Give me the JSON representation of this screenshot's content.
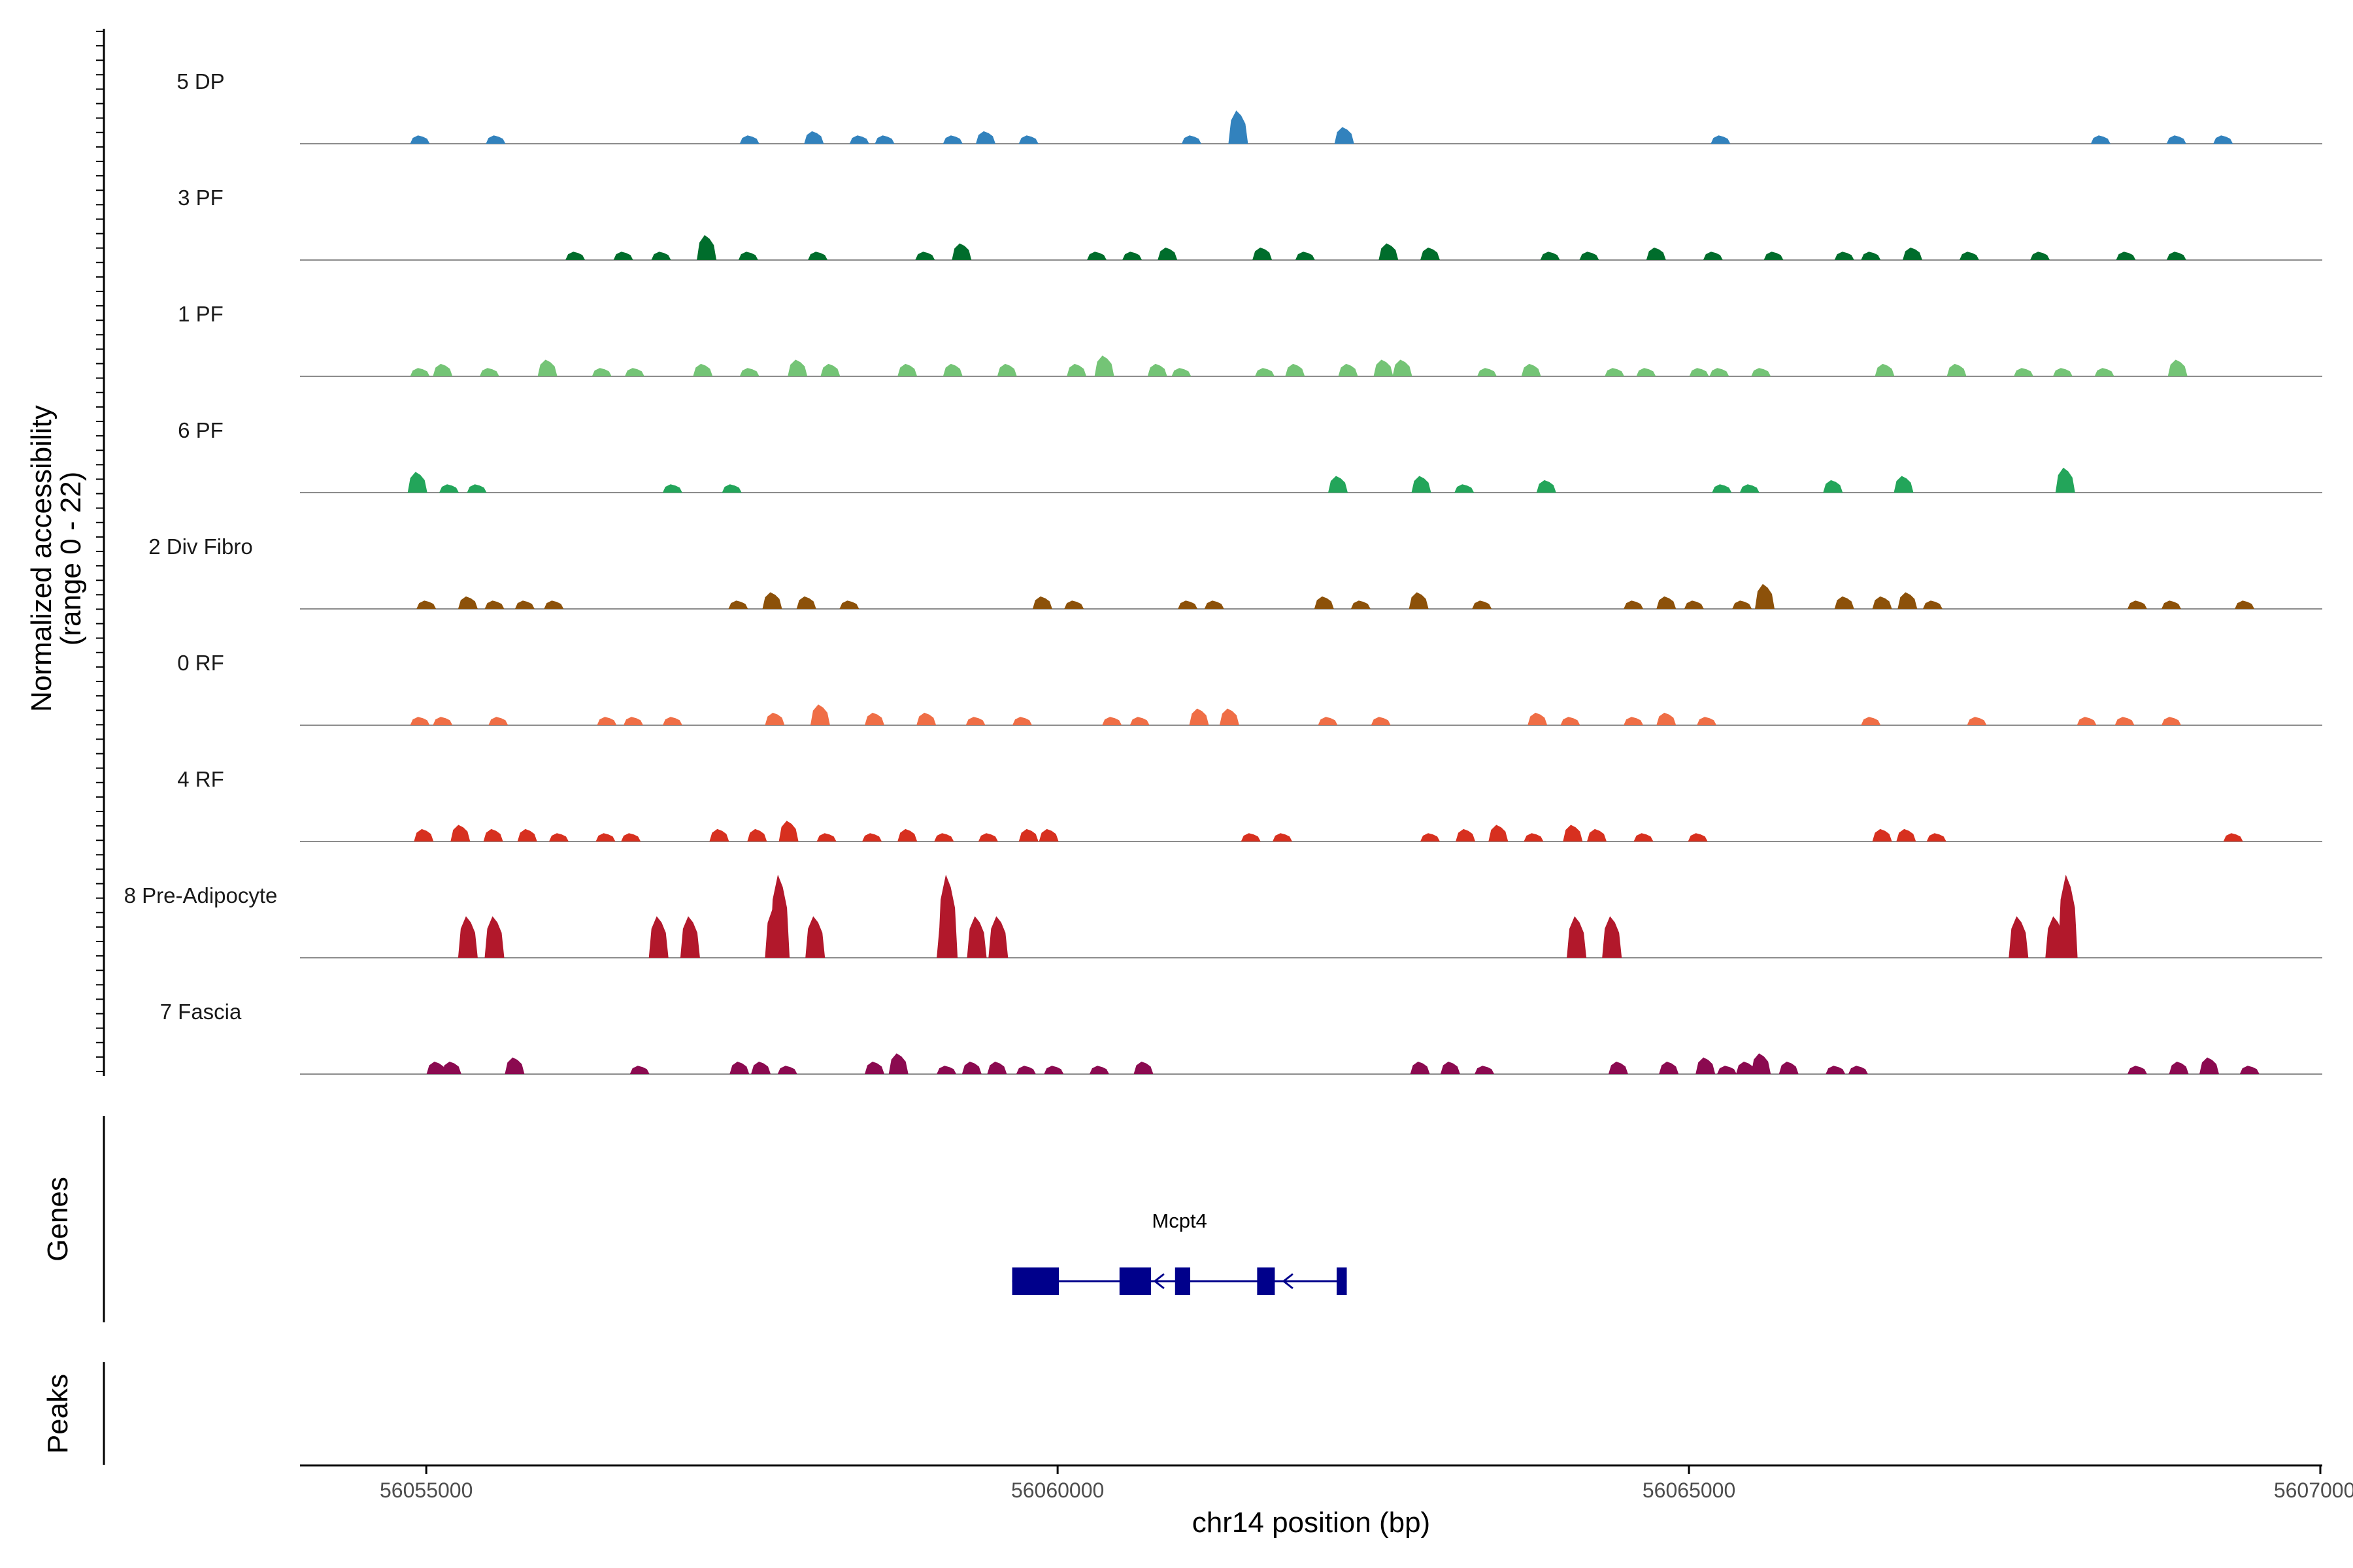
{
  "chart_data": {
    "type": "area",
    "chromosome": "chr14",
    "ylabel_line1": "Normalized accessibility",
    "ylabel_line2": "(range 0 - 22)",
    "ylim": [
      0,
      22
    ],
    "xlabel": "chr14 position (bp)",
    "xlim": [
      56054000,
      56070000
    ],
    "xticks": [
      56055000,
      56060000,
      56065000,
      56070000
    ],
    "xtick_labels": [
      "56055000",
      "56060000",
      "56065000",
      "56070000"
    ],
    "tracks": [
      {
        "name": "5 DP",
        "color": "#3282BD",
        "peaks": [
          [
            56054950,
            2
          ],
          [
            56055550,
            2
          ],
          [
            56057560,
            2
          ],
          [
            56058070,
            3
          ],
          [
            56058430,
            2
          ],
          [
            56058630,
            2
          ],
          [
            56059170,
            2
          ],
          [
            56059430,
            3
          ],
          [
            56059770,
            2
          ],
          [
            56061060,
            2
          ],
          [
            56061430,
            8
          ],
          [
            56062270,
            4
          ],
          [
            56065250,
            2
          ],
          [
            56068260,
            2
          ],
          [
            56068860,
            2
          ],
          [
            56069230,
            2
          ]
        ]
      },
      {
        "name": "3 PF",
        "color": "#006D2C",
        "peaks": [
          [
            56056180,
            2
          ],
          [
            56056560,
            2
          ],
          [
            56056860,
            2
          ],
          [
            56057220,
            6
          ],
          [
            56057550,
            2
          ],
          [
            56058100,
            2
          ],
          [
            56058950,
            2
          ],
          [
            56059240,
            4
          ],
          [
            56060310,
            2
          ],
          [
            56060590,
            2
          ],
          [
            56060870,
            3
          ],
          [
            56061620,
            3
          ],
          [
            56061960,
            2
          ],
          [
            56062620,
            4
          ],
          [
            56062950,
            3
          ],
          [
            56063900,
            2
          ],
          [
            56064210,
            2
          ],
          [
            56064740,
            3
          ],
          [
            56065190,
            2
          ],
          [
            56065670,
            2
          ],
          [
            56066230,
            2
          ],
          [
            56066440,
            2
          ],
          [
            56066770,
            3
          ],
          [
            56067220,
            2
          ],
          [
            56067780,
            2
          ],
          [
            56068460,
            2
          ],
          [
            56068860,
            2
          ]
        ]
      },
      {
        "name": "1 PF",
        "color": "#74C476",
        "peaks": [
          [
            56054950,
            2
          ],
          [
            56055130,
            3
          ],
          [
            56055500,
            2
          ],
          [
            56055960,
            4
          ],
          [
            56056390,
            2
          ],
          [
            56056650,
            2
          ],
          [
            56057190,
            3
          ],
          [
            56057560,
            2
          ],
          [
            56057940,
            4
          ],
          [
            56058200,
            3
          ],
          [
            56058810,
            3
          ],
          [
            56059170,
            3
          ],
          [
            56059600,
            3
          ],
          [
            56060150,
            3
          ],
          [
            56060370,
            5
          ],
          [
            56060790,
            3
          ],
          [
            56060980,
            2
          ],
          [
            56061640,
            2
          ],
          [
            56061880,
            3
          ],
          [
            56062300,
            3
          ],
          [
            56062580,
            4
          ],
          [
            56062730,
            4
          ],
          [
            56063400,
            2
          ],
          [
            56063750,
            3
          ],
          [
            56064410,
            2
          ],
          [
            56064660,
            2
          ],
          [
            56065080,
            2
          ],
          [
            56065240,
            2
          ],
          [
            56065570,
            2
          ],
          [
            56066550,
            3
          ],
          [
            56067120,
            3
          ],
          [
            56067650,
            2
          ],
          [
            56067960,
            2
          ],
          [
            56068290,
            2
          ],
          [
            56068870,
            4
          ]
        ]
      },
      {
        "name": "6 PF",
        "color": "#23A55A",
        "peaks": [
          [
            56054930,
            5
          ],
          [
            56055180,
            2
          ],
          [
            56055400,
            2
          ],
          [
            56056950,
            2
          ],
          [
            56057420,
            2
          ],
          [
            56062220,
            4
          ],
          [
            56062880,
            4
          ],
          [
            56063220,
            2
          ],
          [
            56063870,
            3
          ],
          [
            56065260,
            2
          ],
          [
            56065480,
            2
          ],
          [
            56066140,
            3
          ],
          [
            56066700,
            4
          ],
          [
            56067980,
            6
          ]
        ]
      },
      {
        "name": "2 Div Fibro",
        "color": "#8C510A",
        "peaks": [
          [
            56055000,
            2
          ],
          [
            56055330,
            3
          ],
          [
            56055540,
            2
          ],
          [
            56055780,
            2
          ],
          [
            56056010,
            2
          ],
          [
            56057470,
            2
          ],
          [
            56057740,
            4
          ],
          [
            56058010,
            3
          ],
          [
            56058350,
            2
          ],
          [
            56059880,
            3
          ],
          [
            56060130,
            2
          ],
          [
            56061030,
            2
          ],
          [
            56061240,
            2
          ],
          [
            56062110,
            3
          ],
          [
            56062400,
            2
          ],
          [
            56062860,
            4
          ],
          [
            56063360,
            2
          ],
          [
            56064560,
            2
          ],
          [
            56064820,
            3
          ],
          [
            56065040,
            2
          ],
          [
            56065420,
            2
          ],
          [
            56065600,
            6
          ],
          [
            56066230,
            3
          ],
          [
            56066530,
            3
          ],
          [
            56066730,
            4
          ],
          [
            56066930,
            2
          ],
          [
            56068550,
            2
          ],
          [
            56068820,
            2
          ],
          [
            56069400,
            2
          ]
        ]
      },
      {
        "name": "0 RF",
        "color": "#EF6E46",
        "peaks": [
          [
            56054950,
            2
          ],
          [
            56055130,
            2
          ],
          [
            56055570,
            2
          ],
          [
            56056430,
            2
          ],
          [
            56056640,
            2
          ],
          [
            56056950,
            2
          ],
          [
            56057760,
            3
          ],
          [
            56058120,
            5
          ],
          [
            56058550,
            3
          ],
          [
            56058960,
            3
          ],
          [
            56059350,
            2
          ],
          [
            56059720,
            2
          ],
          [
            56060430,
            2
          ],
          [
            56060650,
            2
          ],
          [
            56061120,
            4
          ],
          [
            56061360,
            4
          ],
          [
            56062140,
            2
          ],
          [
            56062560,
            2
          ],
          [
            56063800,
            3
          ],
          [
            56064060,
            2
          ],
          [
            56064560,
            2
          ],
          [
            56064820,
            3
          ],
          [
            56065140,
            2
          ],
          [
            56066440,
            2
          ],
          [
            56067280,
            2
          ],
          [
            56068150,
            2
          ],
          [
            56068450,
            2
          ],
          [
            56068820,
            2
          ]
        ]
      },
      {
        "name": "4 RF",
        "color": "#D7301F",
        "peaks": [
          [
            56054980,
            3
          ],
          [
            56055270,
            4
          ],
          [
            56055530,
            3
          ],
          [
            56055800,
            3
          ],
          [
            56056050,
            2
          ],
          [
            56056420,
            2
          ],
          [
            56056620,
            2
          ],
          [
            56057320,
            3
          ],
          [
            56057620,
            3
          ],
          [
            56057870,
            5
          ],
          [
            56058170,
            2
          ],
          [
            56058530,
            2
          ],
          [
            56058810,
            3
          ],
          [
            56059100,
            2
          ],
          [
            56059450,
            2
          ],
          [
            56059770,
            3
          ],
          [
            56059930,
            3
          ],
          [
            56061530,
            2
          ],
          [
            56061780,
            2
          ],
          [
            56062950,
            2
          ],
          [
            56063230,
            3
          ],
          [
            56063490,
            4
          ],
          [
            56063770,
            2
          ],
          [
            56064080,
            4
          ],
          [
            56064270,
            3
          ],
          [
            56064640,
            2
          ],
          [
            56065070,
            2
          ],
          [
            56066530,
            3
          ],
          [
            56066720,
            3
          ],
          [
            56066960,
            2
          ],
          [
            56069310,
            2
          ]
        ]
      },
      {
        "name": "8 Pre-Adipocyte",
        "color": "#B2182B",
        "peaks": [
          [
            56055330,
            10
          ],
          [
            56055540,
            10
          ],
          [
            56056840,
            10
          ],
          [
            56057090,
            10
          ],
          [
            56057760,
            12
          ],
          [
            56057800,
            20
          ],
          [
            56058080,
            10
          ],
          [
            56059120,
            10
          ],
          [
            56059130,
            20
          ],
          [
            56059360,
            10
          ],
          [
            56059530,
            10
          ],
          [
            56064110,
            10
          ],
          [
            56064390,
            10
          ],
          [
            56067610,
            10
          ],
          [
            56067900,
            10
          ],
          [
            56068000,
            20
          ]
        ]
      },
      {
        "name": "7 Fascia",
        "color": "#8B0A50",
        "peaks": [
          [
            56055080,
            3
          ],
          [
            56055200,
            3
          ],
          [
            56055700,
            4
          ],
          [
            56056690,
            2
          ],
          [
            56057480,
            3
          ],
          [
            56057650,
            3
          ],
          [
            56057860,
            2
          ],
          [
            56058550,
            3
          ],
          [
            56058740,
            5
          ],
          [
            56059120,
            2
          ],
          [
            56059320,
            3
          ],
          [
            56059520,
            3
          ],
          [
            56059750,
            2
          ],
          [
            56059970,
            2
          ],
          [
            56060330,
            2
          ],
          [
            56060680,
            3
          ],
          [
            56062870,
            3
          ],
          [
            56063110,
            3
          ],
          [
            56063380,
            2
          ],
          [
            56064440,
            3
          ],
          [
            56064840,
            3
          ],
          [
            56065130,
            4
          ],
          [
            56065300,
            2
          ],
          [
            56065450,
            3
          ],
          [
            56065570,
            5
          ],
          [
            56065790,
            3
          ],
          [
            56066160,
            2
          ],
          [
            56066340,
            2
          ],
          [
            56068550,
            2
          ],
          [
            56068880,
            3
          ],
          [
            56069120,
            4
          ],
          [
            56069440,
            2
          ]
        ]
      }
    ],
    "genes_panel": {
      "title": "Genes",
      "gene": {
        "name": "Mcpt4",
        "strand": "-",
        "color": "#00008B",
        "start": 56059640,
        "end": 56062290,
        "exons": [
          [
            56059640,
            56060010
          ],
          [
            56060490,
            56060740
          ],
          [
            56060930,
            56061050
          ],
          [
            56061580,
            56061720
          ],
          [
            56062210,
            56062290
          ]
        ],
        "arrows": [
          56060770,
          56061790
        ]
      }
    },
    "peaks_panel": {
      "title": "Peaks"
    }
  }
}
